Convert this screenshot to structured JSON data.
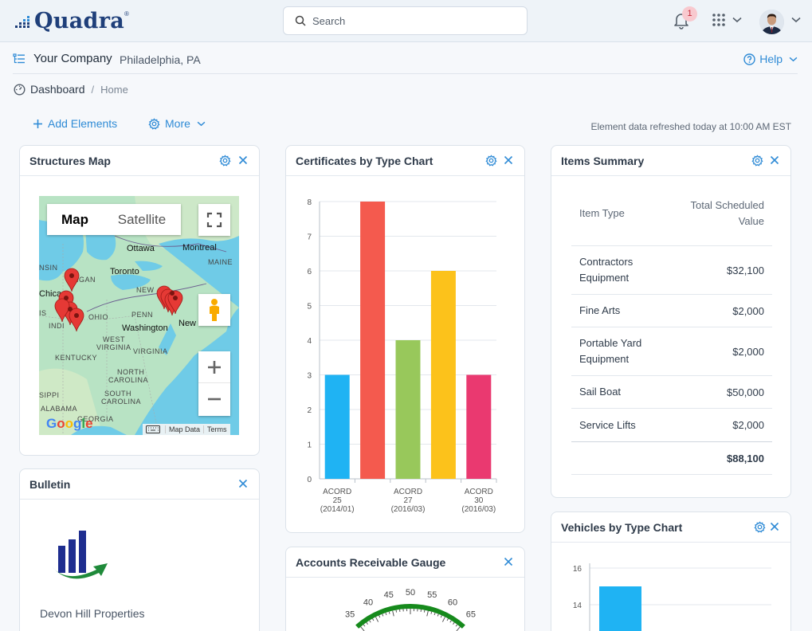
{
  "app": {
    "logo": "Quadra",
    "logo_mark": "®"
  },
  "search": {
    "placeholder": "Search"
  },
  "notifications": {
    "count": "1"
  },
  "company": {
    "name": "Your Company",
    "city": "Philadelphia, PA"
  },
  "help": {
    "label": "Help"
  },
  "breadcrumb": {
    "dashboard": "Dashboard",
    "separator": "/",
    "home": "Home"
  },
  "actions": {
    "add_elements": "Add Elements",
    "more": "More"
  },
  "refresh_text": "Element data refreshed today at 10:00 AM EST",
  "widgets": {
    "structures_map": {
      "title": "Structures Map",
      "map_button": "Map",
      "satellite_button": "Satellite",
      "footer_data": "Map Data",
      "footer_terms": "Terms",
      "google": "Google",
      "labels": {
        "ottawa": "Ottawa",
        "montreal": "Montreal",
        "maine": "MAINE",
        "toronto": "Toronto",
        "michigan": "HIGAN",
        "wisconsin": "NSIN",
        "chicago": "Chica",
        "new_york": "NEW",
        "ohio": "OHIO",
        "penn": "PENN",
        "indiana": "INDI",
        "illinois": "IS",
        "washington": "Washington",
        "new_york_city": "New York",
        "west": "WEST",
        "virginia1": "VIRGINIA",
        "virginia2": "VIRGINIA",
        "kentucky": "KENTUCKY",
        "north": "NORTH",
        "carolina1": "CAROLINA",
        "south": "SOUTH",
        "carolina2": "CAROLINA",
        "mississippi": "SIPPI",
        "alabama": "ALABAMA",
        "georgia": "GEORGIA"
      }
    },
    "certificates": {
      "title": "Certificates by Type Chart"
    },
    "items_summary": {
      "title": "Items Summary",
      "col_type": "Item Type",
      "col_value": "Total Scheduled Value",
      "rows": [
        {
          "type": "Contractors Equipment",
          "value": "$32,100"
        },
        {
          "type": "Fine Arts",
          "value": "$2,000"
        },
        {
          "type": "Portable Yard Equipment",
          "value": "$2,000"
        },
        {
          "type": "Sail Boat",
          "value": "$50,000"
        },
        {
          "type": "Service Lifts",
          "value": "$2,000"
        }
      ],
      "total": "$88,100"
    },
    "bulletin": {
      "title": "Bulletin",
      "company": "Devon Hill Properties"
    },
    "accounts_receivable": {
      "title": "Accounts Receivable Gauge",
      "ticks": [
        "35",
        "40",
        "45",
        "50",
        "55",
        "60",
        "65"
      ]
    },
    "vehicles": {
      "title": "Vehicles by Type Chart"
    }
  },
  "chart_data": [
    {
      "type": "bar",
      "title": "Certificates by Type Chart",
      "categories": [
        "ACORD 25 (2014/01)",
        "",
        "ACORD 27 (2016/03)",
        "",
        "ACORD 30 (2016/03)"
      ],
      "category_labels": [
        [
          "ACORD",
          "25",
          "(2014/01)"
        ],
        [],
        [
          "ACORD",
          "27",
          "(2016/03)"
        ],
        [],
        [
          "ACORD",
          "30",
          "(2016/03)"
        ]
      ],
      "values": [
        3,
        8,
        4,
        6,
        3
      ],
      "colors": [
        "#1fb3f3",
        "#f45a4e",
        "#98c85b",
        "#fcc21b",
        "#ea3970"
      ],
      "ylim": [
        0,
        8
      ],
      "yticks": [
        0,
        1,
        2,
        3,
        4,
        5,
        6,
        7,
        8
      ],
      "grid": true
    },
    {
      "type": "bar",
      "title": "Vehicles by Type Chart",
      "categories": [
        ""
      ],
      "values": [
        15
      ],
      "colors": [
        "#1fb3f3"
      ],
      "yticks": [
        14,
        16
      ],
      "grid": true
    }
  ]
}
